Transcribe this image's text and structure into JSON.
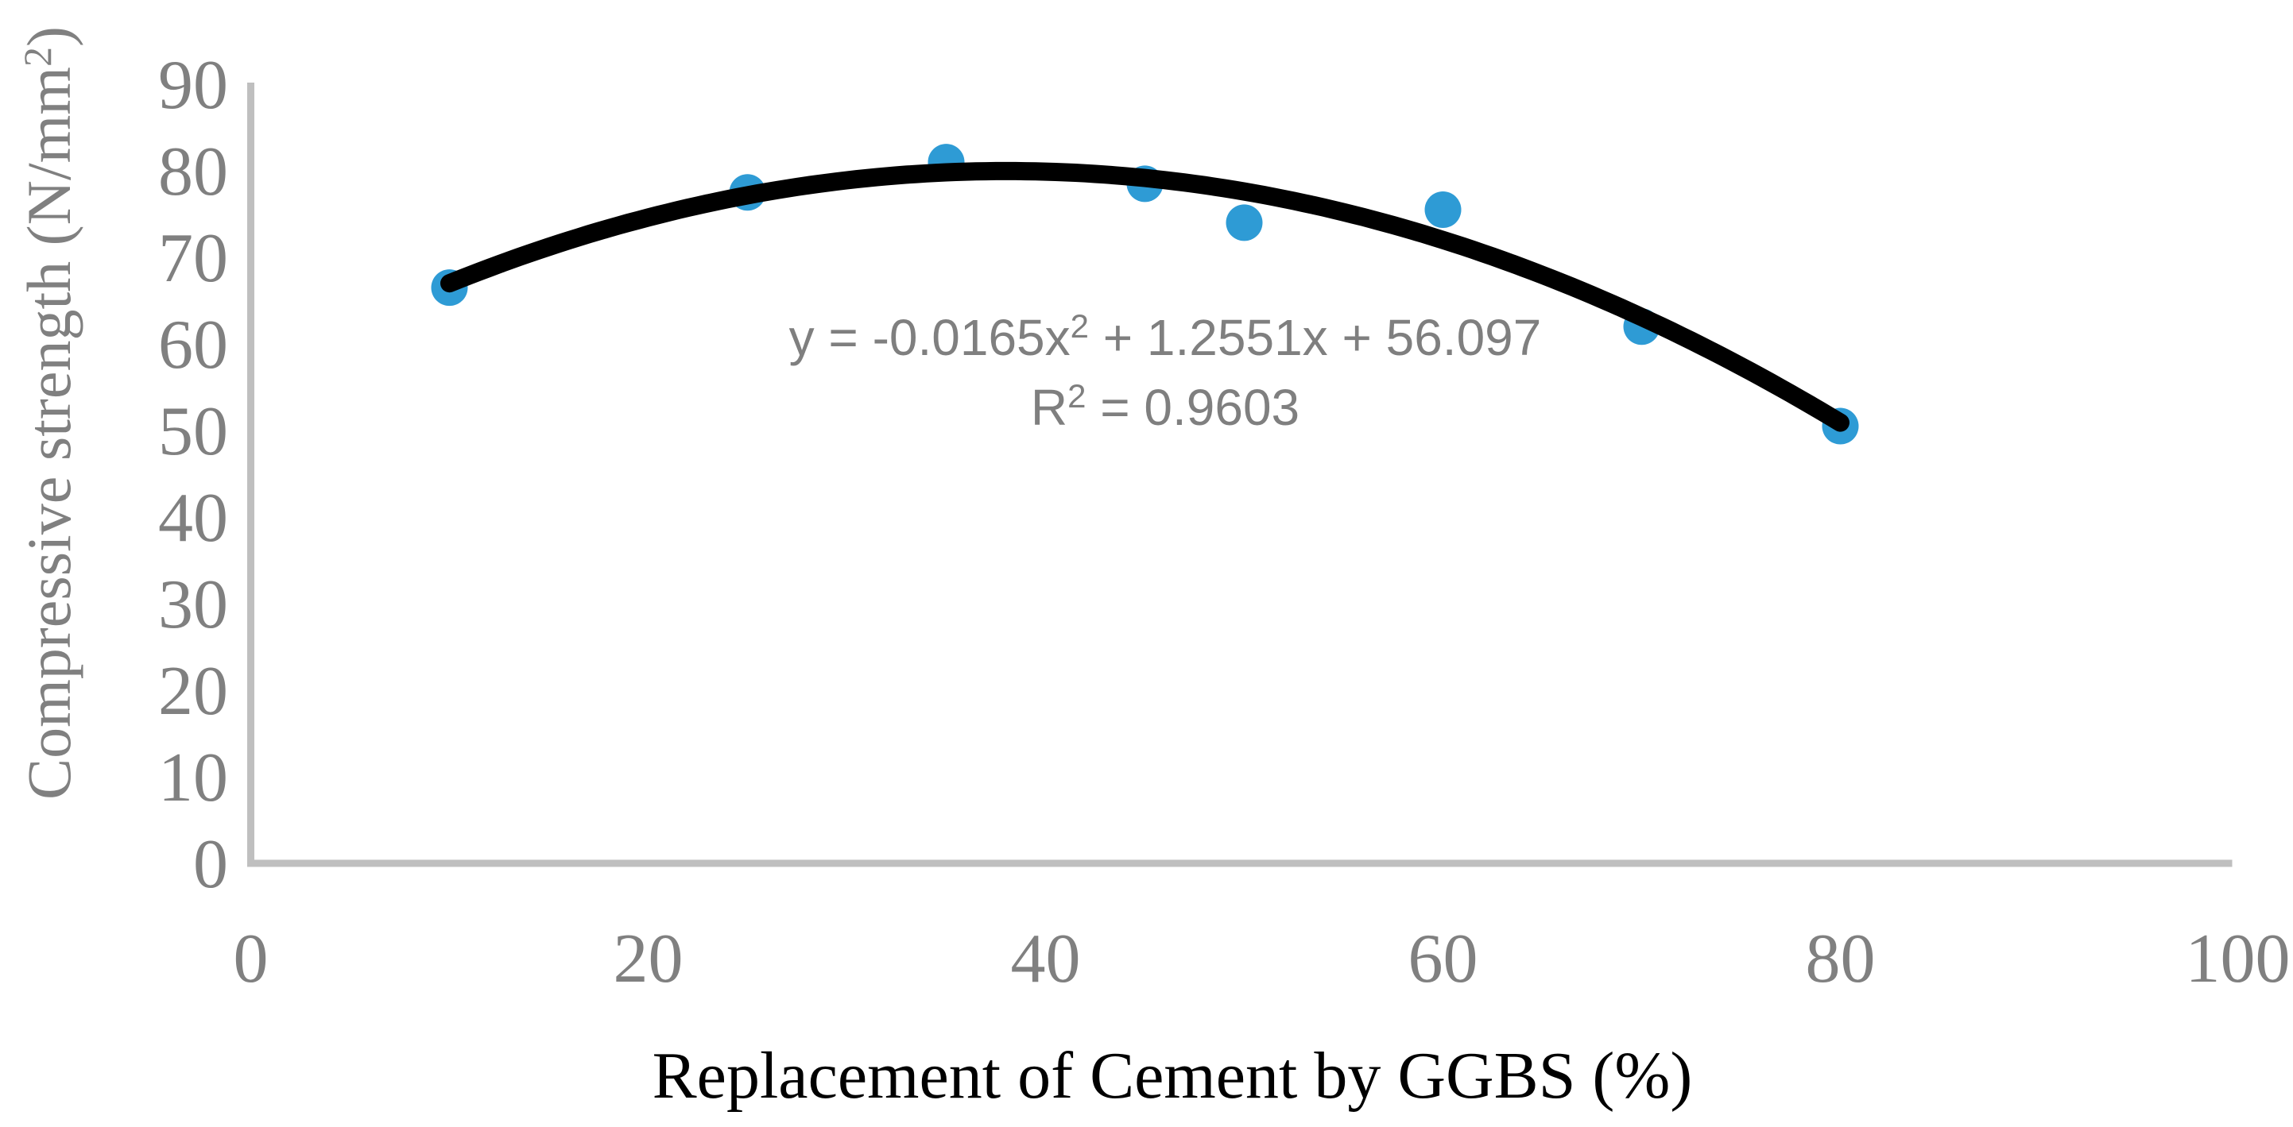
{
  "figure": {
    "background": "#FFFFFF"
  },
  "chart_data": {
    "type": "scatter",
    "title": "",
    "xlabel": "Replacement of Cement by GGBS (%)",
    "ylabel": "Compressive strength (N/mm²)",
    "x": [
      10,
      25,
      35,
      45,
      50,
      60,
      70,
      80
    ],
    "y": [
      66.5,
      77.5,
      81,
      78.5,
      74,
      75.5,
      62,
      50.5
    ],
    "xlim": [
      0,
      100
    ],
    "ylim": [
      0,
      90
    ],
    "x_ticks": [
      "0",
      "20",
      "40",
      "60",
      "80",
      "100"
    ],
    "y_ticks": [
      "0",
      "10",
      "20",
      "30",
      "40",
      "50",
      "60",
      "70",
      "80",
      "90"
    ],
    "grid": false,
    "legend": "none",
    "trendline": {
      "type": "polynomial",
      "order": 2,
      "coefficients": {
        "a": -0.0165,
        "b": 1.2551,
        "c": 56.097
      },
      "x_range": [
        10,
        80
      ],
      "equation_label": "y = -0.0165x² + 1.2551x + 56.097",
      "r_squared_label": "R² = 0.9603"
    },
    "colors": {
      "marker": "#2E9BD5",
      "trendline": "#000000",
      "axis_line": "#BFBFBF",
      "tick_label": "#808080",
      "ylabel_color": "#808080",
      "xlabel_color": "#000000",
      "equation_color": "#7F7F7F"
    }
  }
}
